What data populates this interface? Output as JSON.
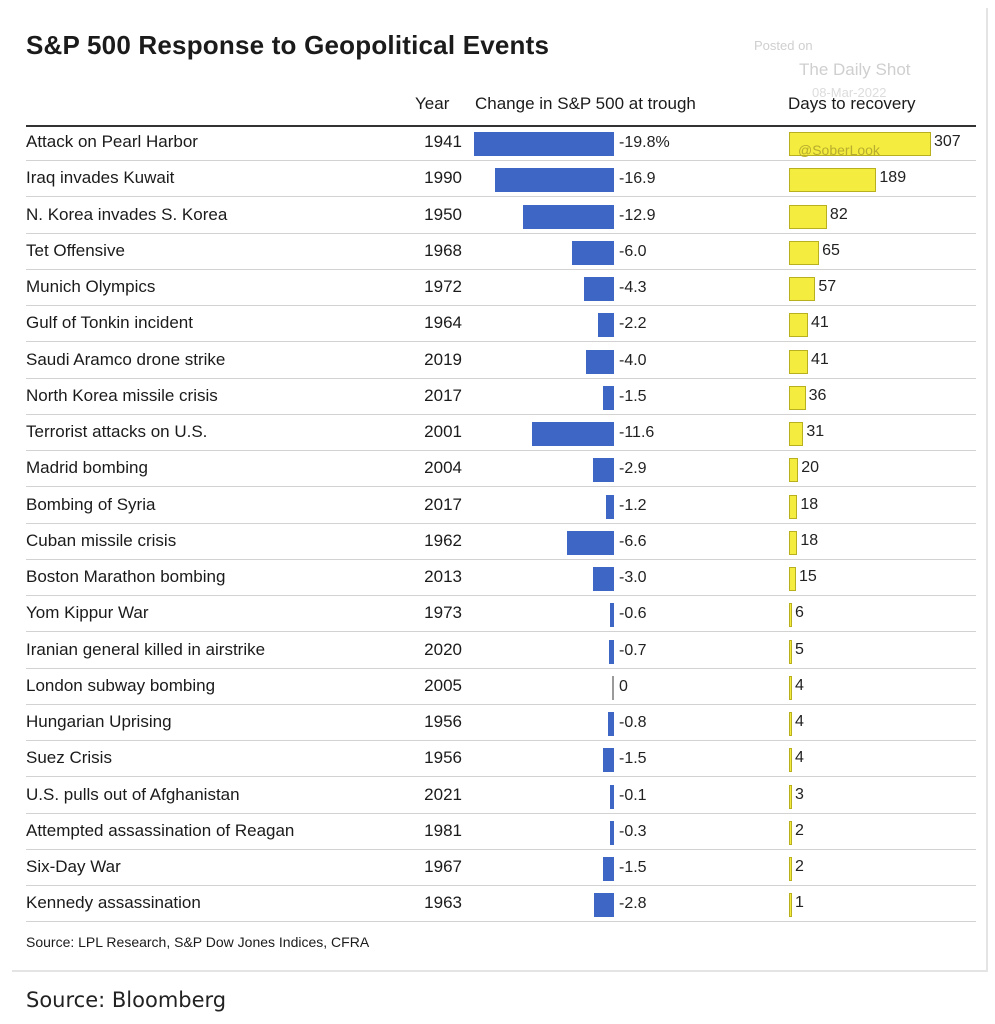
{
  "page": {
    "watermark_line1": "Posted on",
    "watermark_line2": "The Daily Shot",
    "watermark_line3": "08-Mar-2022",
    "watermark_handle": "@SoberLook",
    "footer_source": "Source: Bloomberg"
  },
  "chart_data": {
    "type": "bar",
    "title": "S&P 500 Response to Geopolitical Events",
    "columns": [
      "Year",
      "Change in S&P 500 at trough",
      "Days to recovery"
    ],
    "source": "Source: LPL Research, S&P Dow Jones Indices, CFRA",
    "colors": {
      "change_bar": "#3e66c4",
      "recovery_bar": "#f4ec3e"
    },
    "change_axis_max_abs": 19.8,
    "recovery_axis_max": 307,
    "rows": [
      {
        "event": "Attack on Pearl Harbor",
        "year": "1941",
        "change": -19.8,
        "change_label": "-19.8%",
        "days": 307,
        "days_label": "307"
      },
      {
        "event": "Iraq invades Kuwait",
        "year": "1990",
        "change": -16.9,
        "change_label": "-16.9",
        "days": 189,
        "days_label": "189"
      },
      {
        "event": "N. Korea invades S. Korea",
        "year": "1950",
        "change": -12.9,
        "change_label": "-12.9",
        "days": 82,
        "days_label": "82"
      },
      {
        "event": "Tet Offensive",
        "year": "1968",
        "change": -6.0,
        "change_label": "-6.0",
        "days": 65,
        "days_label": "65"
      },
      {
        "event": "Munich Olympics",
        "year": "1972",
        "change": -4.3,
        "change_label": "-4.3",
        "days": 57,
        "days_label": "57"
      },
      {
        "event": "Gulf of Tonkin incident",
        "year": "1964",
        "change": -2.2,
        "change_label": "-2.2",
        "days": 41,
        "days_label": "41"
      },
      {
        "event": "Saudi Aramco drone strike",
        "year": "2019",
        "change": -4.0,
        "change_label": "-4.0",
        "days": 41,
        "days_label": "41"
      },
      {
        "event": "North Korea missile crisis",
        "year": "2017",
        "change": -1.5,
        "change_label": "-1.5",
        "days": 36,
        "days_label": "36"
      },
      {
        "event": "Terrorist attacks on U.S.",
        "year": "2001",
        "change": -11.6,
        "change_label": "-11.6",
        "days": 31,
        "days_label": "31"
      },
      {
        "event": "Madrid bombing",
        "year": "2004",
        "change": -2.9,
        "change_label": "-2.9",
        "days": 20,
        "days_label": "20"
      },
      {
        "event": "Bombing of Syria",
        "year": "2017",
        "change": -1.2,
        "change_label": "-1.2",
        "days": 18,
        "days_label": "18"
      },
      {
        "event": "Cuban missile crisis",
        "year": "1962",
        "change": -6.6,
        "change_label": "-6.6",
        "days": 18,
        "days_label": "18"
      },
      {
        "event": "Boston Marathon bombing",
        "year": "2013",
        "change": -3.0,
        "change_label": "-3.0",
        "days": 15,
        "days_label": "15"
      },
      {
        "event": "Yom Kippur War",
        "year": "1973",
        "change": -0.6,
        "change_label": "-0.6",
        "days": 6,
        "days_label": "6"
      },
      {
        "event": "Iranian general killed in airstrike",
        "year": "2020",
        "change": -0.7,
        "change_label": "-0.7",
        "days": 5,
        "days_label": "5"
      },
      {
        "event": "London subway bombing",
        "year": "2005",
        "change": 0,
        "change_label": "0",
        "days": 4,
        "days_label": "4"
      },
      {
        "event": "Hungarian Uprising",
        "year": "1956",
        "change": -0.8,
        "change_label": "-0.8",
        "days": 4,
        "days_label": "4"
      },
      {
        "event": "Suez Crisis",
        "year": "1956",
        "change": -1.5,
        "change_label": "-1.5",
        "days": 4,
        "days_label": "4"
      },
      {
        "event": "U.S. pulls out of Afghanistan",
        "year": "2021",
        "change": -0.1,
        "change_label": "-0.1",
        "days": 3,
        "days_label": "3"
      },
      {
        "event": "Attempted assassination of Reagan",
        "year": "1981",
        "change": -0.3,
        "change_label": "-0.3",
        "days": 2,
        "days_label": "2"
      },
      {
        "event": "Six-Day War",
        "year": "1967",
        "change": -1.5,
        "change_label": "-1.5",
        "days": 2,
        "days_label": "2"
      },
      {
        "event": "Kennedy assassination",
        "year": "1963",
        "change": -2.8,
        "change_label": "-2.8",
        "days": 1,
        "days_label": "1"
      }
    ]
  }
}
